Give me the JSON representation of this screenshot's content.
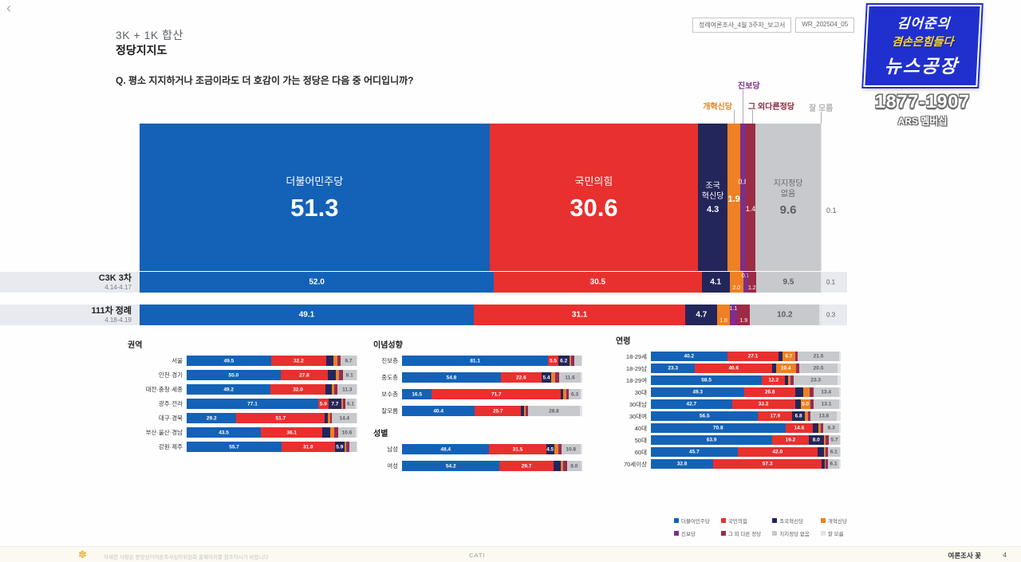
{
  "page": {
    "back_arrow": "‹",
    "header": {
      "subtitle": "3K + 1K 합산",
      "title": "정당지지도",
      "question": "Q. 평소 지지하거나 조금이라도 더 호감이 가는 정당은 다음 중 어디입니까?",
      "report_tag": "정례여론조사_4월 3주차_보고서",
      "report_code": "WR_202504_05"
    },
    "logo": {
      "line1": "김어준의",
      "line2": "겸손은힘들다",
      "line3": "뉴스공장",
      "phone": "1877-1907",
      "ars": "ARS 멤버십"
    },
    "footer": {
      "disclaimer": "자세한 사항은 중앙선거여론조사심의위원회 홈페이지를 참조하시기 바랍니다",
      "center": "CATI",
      "brand": "여론조사 꽃",
      "page_no": "4"
    }
  },
  "chart_data": {
    "type": "bar",
    "stacked": true,
    "unit": "%",
    "title": "정당지지도 (3K + 1K 합산)",
    "series": [
      {
        "name": "더불어민주당",
        "color": "#1362b7"
      },
      {
        "name": "국민의힘",
        "color": "#e8302e"
      },
      {
        "name": "조국혁신당",
        "color": "#23265a"
      },
      {
        "name": "개혁신당",
        "color": "#ef8023"
      },
      {
        "name": "진보당",
        "color": "#7c3087"
      },
      {
        "name": "그 외 다른 정당",
        "color": "#9c2b45"
      },
      {
        "name": "지지정당 없음",
        "color": "#c7c9cc"
      },
      {
        "name": "잘 모름",
        "color": "#e3e4e6"
      }
    ],
    "callouts": [
      {
        "label": "진보당",
        "color": "#7c3087"
      },
      {
        "label": "개혁신당",
        "color": "#ef8023"
      },
      {
        "label": "그 외다른정당",
        "color": "#8a2436"
      },
      {
        "label": "잘 모름",
        "color": "#b3b3b3"
      }
    ],
    "main": {
      "label": "3K + 1K 합산",
      "values": [
        51.3,
        30.6,
        4.3,
        1.9,
        0.8,
        1.4,
        9.6,
        0.1
      ]
    },
    "comparisons": [
      {
        "label": "C3K 3차",
        "period": "4.14-4.17",
        "values": [
          52.0,
          30.5,
          4.1,
          2.0,
          0.7,
          1.2,
          9.5,
          0.1
        ]
      },
      {
        "label": "111차 정례",
        "period": "4.18-4.19",
        "values": [
          49.1,
          31.1,
          4.7,
          1.8,
          1.1,
          1.9,
          10.2,
          0.3
        ]
      }
    ],
    "groups": [
      {
        "title": "권역",
        "rows": [
          {
            "label": "서울",
            "values": [
              49.5,
              32.2,
              4.2,
              2.2,
              0.6,
              1.3,
              9.7,
              0.3
            ]
          },
          {
            "label": "인천·경기",
            "values": [
              55.0,
              27.8,
              4.4,
              2.0,
              0.8,
              1.4,
              8.1,
              0.5
            ]
          },
          {
            "label": "대전·충청·세종",
            "values": [
              49.2,
              32.0,
              3.8,
              1.6,
              0.5,
              1.3,
              11.3,
              0.3
            ]
          },
          {
            "label": "광주·전라",
            "values": [
              77.1,
              5.9,
              7.7,
              0.9,
              0.4,
              1.0,
              6.1,
              0.9
            ]
          },
          {
            "label": "대구·경북",
            "values": [
              29.2,
              51.7,
              1.6,
              1.4,
              0.3,
              1.0,
              14.4,
              0.4
            ]
          },
          {
            "label": "부산·울산·경남",
            "values": [
              43.5,
              36.1,
              4.4,
              2.3,
              0.6,
              1.7,
              10.6,
              0.8
            ]
          },
          {
            "label": "강원·제주",
            "values": [
              55.7,
              31.0,
              5.9,
              1.1,
              0.5,
              1.0,
              4.4,
              0.4
            ]
          }
        ]
      },
      {
        "title": "이념성향",
        "rows": [
          {
            "label": "진보층",
            "values": [
              81.1,
              5.5,
              6.2,
              1.1,
              0.8,
              1.0,
              3.9,
              0.4
            ]
          },
          {
            "label": "중도층",
            "values": [
              54.8,
              22.6,
              5.4,
              2.2,
              0.8,
              1.6,
              11.6,
              1.0
            ]
          },
          {
            "label": "보수층",
            "values": [
              16.5,
              71.7,
              1.4,
              1.6,
              0.3,
              1.2,
              6.3,
              1.0
            ]
          },
          {
            "label": "잘모름",
            "values": [
              40.4,
              25.7,
              1.5,
              1.0,
              0.3,
              1.0,
              28.8,
              1.3
            ]
          }
        ]
      },
      {
        "title": "성별",
        "rows": [
          {
            "label": "남성",
            "values": [
              48.4,
              31.5,
              4.5,
              2.2,
              0.5,
              1.2,
              10.8,
              0.9
            ]
          },
          {
            "label": "여성",
            "values": [
              54.2,
              29.7,
              4.1,
              1.5,
              1.0,
              1.0,
              8.0,
              0.5
            ]
          }
        ]
      },
      {
        "title": "연령",
        "rows": [
          {
            "label": "18-29세",
            "values": [
              40.2,
              27.1,
              2.0,
              6.7,
              0.5,
              1.0,
              21.5,
              1.0
            ]
          },
          {
            "label": "18-29남",
            "values": [
              23.3,
              40.6,
              2.0,
              10.4,
              0.5,
              1.2,
              20.5,
              1.5
            ]
          },
          {
            "label": "18-29여",
            "values": [
              58.5,
              12.2,
              1.5,
              1.5,
              0.5,
              1.0,
              23.3,
              1.5
            ]
          },
          {
            "label": "30대",
            "values": [
              49.3,
              26.8,
              4.0,
              3.5,
              0.5,
              1.5,
              13.4,
              1.0
            ]
          },
          {
            "label": "30대남",
            "values": [
              42.7,
              33.2,
              3.0,
              5.0,
              0.5,
              1.5,
              13.1,
              1.0
            ]
          },
          {
            "label": "30대여",
            "values": [
              56.5,
              17.9,
              6.8,
              1.5,
              0.5,
              1.0,
              13.8,
              2.0
            ]
          },
          {
            "label": "40대",
            "values": [
              70.8,
              14.6,
              3.0,
              1.0,
              0.5,
              1.0,
              8.3,
              0.8
            ]
          },
          {
            "label": "50대",
            "values": [
              63.9,
              19.2,
              8.0,
              1.0,
              0.5,
              1.2,
              5.7,
              0.5
            ]
          },
          {
            "label": "60대",
            "values": [
              45.7,
              42.0,
              3.5,
              0.8,
              0.3,
              1.0,
              6.1,
              0.6
            ]
          },
          {
            "label": "70세이상",
            "values": [
              32.8,
              57.3,
              1.5,
              0.5,
              0.3,
              0.8,
              6.1,
              0.7
            ]
          }
        ]
      }
    ]
  }
}
